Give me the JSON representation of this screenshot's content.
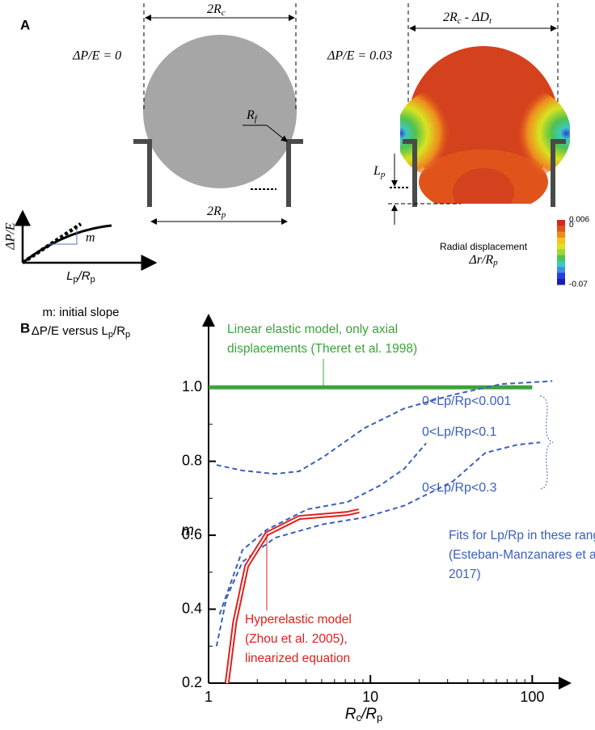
{
  "panel_a": {
    "label": "A",
    "left": {
      "pressure": "ΔP/E = 0",
      "width": [
        "2R",
        "c"
      ],
      "fillet": [
        "R",
        "f"
      ],
      "pipette": [
        "2R",
        "p"
      ]
    },
    "right": {
      "pressure": "ΔP/E = 0.03",
      "width": [
        "2R",
        "c",
        " - ΔD",
        "t"
      ],
      "length": [
        "L",
        "p"
      ]
    },
    "colorbar": {
      "title": "Radial displacement",
      "unit": [
        "Δr/R",
        "p"
      ],
      "lim": [
        -0.07,
        0.006
      ],
      "ticks": [
        0.006,
        0,
        -0.07
      ],
      "colors": [
        "#d32a1e",
        "#e0541c",
        "#ef8a1f",
        "#f3c31f",
        "#d9e21f",
        "#9fd63a",
        "#4fc24f",
        "#3fc7c0",
        "#3b8fe6",
        "#2a3fe0",
        "#1d1fb0"
      ]
    }
  },
  "inset": {
    "label": "B",
    "y_label": "ΔP/E",
    "slope": "m",
    "x_label": [
      "L",
      "p",
      "/R",
      "p"
    ],
    "caption": [
      "m: initial slope",
      "ΔP/E versus L",
      "p",
      "/R",
      "p"
    ]
  },
  "chart_data": {
    "type": "line",
    "x_label": [
      "R",
      "c",
      "/R",
      "p"
    ],
    "y_label": "m",
    "xlog": true,
    "xlim": [
      1,
      171
    ],
    "xticks": [
      1,
      10,
      100
    ],
    "xminorticks": [
      2,
      3,
      4,
      5,
      6,
      7,
      8,
      9,
      20,
      30,
      40,
      50,
      60,
      70,
      80,
      90
    ],
    "ylim": [
      0.2,
      1.195
    ],
    "yticks": [
      {
        "value": 0.2,
        "label": "0.2"
      },
      {
        "value": 0.4,
        "label": "0.4"
      },
      {
        "value": 0.6,
        "label": "0.6"
      },
      {
        "value": 0.8,
        "label": "0.8"
      },
      {
        "value": 1.0,
        "label": "1.0"
      }
    ],
    "yminorticks": [
      0.3,
      0.5,
      0.7,
      0.9
    ],
    "series": [
      {
        "color": "#3aa33a",
        "x": [
          1,
          100
        ],
        "values": [
          1,
          1
        ]
      },
      {
        "name": "0<Lp/Rp<0.001",
        "color": "#3a5fbf",
        "dashed": true,
        "x": [
          1.12,
          1.62,
          2.57,
          3.63,
          5.13,
          9.12,
          16.2,
          32.4,
          64.6,
          133
        ],
        "values": [
          0.79,
          0.775,
          0.766,
          0.773,
          0.812,
          0.889,
          0.943,
          0.98,
          1.009,
          1.017
        ]
      },
      {
        "name": "0<Lp/Rp<0.1",
        "color": "#3a5fbf",
        "dashed": true,
        "x": [
          1.17,
          1.62,
          2.29,
          4.07,
          7.24,
          11.5,
          16.2,
          22.1
        ],
        "values": [
          0.386,
          0.56,
          0.615,
          0.67,
          0.69,
          0.735,
          0.78,
          0.849
        ]
      },
      {
        "name": "0<Lp/Rp<0.3",
        "color": "#3a5fbf",
        "dashed": true,
        "x": [
          1.12,
          1.29,
          1.62,
          2.57,
          5.13,
          9.12,
          16.2,
          32.4,
          51.3,
          81.3,
          112
        ],
        "values": [
          0.3,
          0.43,
          0.528,
          0.593,
          0.63,
          0.648,
          0.68,
          0.746,
          0.823,
          0.845,
          0.851
        ]
      },
      {
        "color": "#e0201e",
        "double": true,
        "x": [
          1.3,
          1.45,
          1.72,
          2.29,
          3.63,
          7.24,
          8.5
        ],
        "values": [
          0.2,
          0.364,
          0.517,
          0.604,
          0.648,
          0.659,
          0.666
        ]
      }
    ],
    "annotations": [
      {
        "color": "#3aa33a",
        "lines": [
          "Linear elastic model, only axial",
          "displacements (Theret et al. 1998)"
        ]
      },
      {
        "color": "#3a5fbf",
        "lines": [
          "Fits for Lp/Rp in these ranges",
          "(Esteban-Manzanares et al.",
          "2017)"
        ]
      },
      {
        "color": "#e0201e",
        "lines": [
          "Hyperelastic model",
          "(Zhou et al. 2005),",
          "linearized equation"
        ]
      }
    ]
  }
}
